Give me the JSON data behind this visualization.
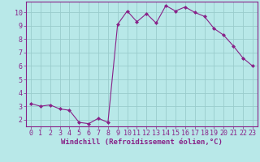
{
  "x": [
    0,
    1,
    2,
    3,
    4,
    5,
    6,
    7,
    8,
    9,
    10,
    11,
    12,
    13,
    14,
    15,
    16,
    17,
    18,
    19,
    20,
    21,
    22,
    23
  ],
  "y": [
    3.2,
    3.0,
    3.1,
    2.8,
    2.7,
    1.8,
    1.7,
    2.1,
    1.8,
    9.1,
    10.1,
    9.3,
    9.9,
    9.2,
    10.5,
    10.1,
    10.4,
    10.0,
    9.7,
    8.8,
    8.3,
    7.5,
    6.6,
    6.0
  ],
  "line_color": "#882288",
  "marker": "D",
  "marker_size": 2.0,
  "bg_color": "#b8e8e8",
  "grid_color": "#99cccc",
  "xlabel": "Windchill (Refroidissement éolien,°C)",
  "xlabel_color": "#882288",
  "tick_color": "#882288",
  "ylim": [
    1.5,
    10.8
  ],
  "xlim": [
    -0.5,
    23.5
  ],
  "yticks": [
    2,
    3,
    4,
    5,
    6,
    7,
    8,
    9,
    10
  ],
  "xticks": [
    0,
    1,
    2,
    3,
    4,
    5,
    6,
    7,
    8,
    9,
    10,
    11,
    12,
    13,
    14,
    15,
    16,
    17,
    18,
    19,
    20,
    21,
    22,
    23
  ],
  "xlabel_fontsize": 6.5,
  "tick_fontsize": 6.0
}
